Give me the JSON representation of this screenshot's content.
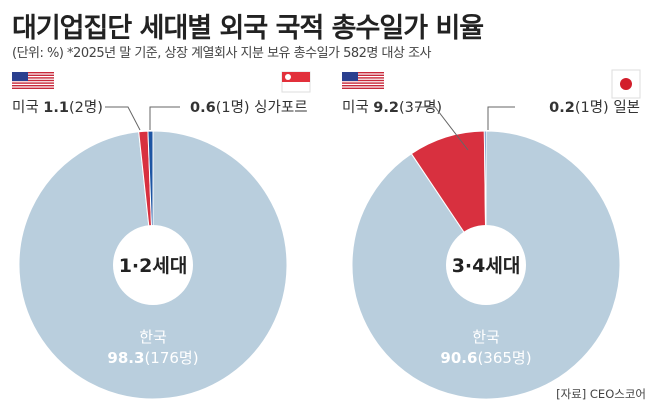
{
  "title": "대기업집단 세대별 외국 국적 총수일가 비율",
  "subtitle": "(단위: %) *2025년 말 기준, 상장 계열회사 지분 보유 총수일가 582명 대상 조사",
  "source": "[자료] CEO스코어",
  "colors": {
    "korea": "#b9cedd",
    "usa": "#d8303f",
    "other": "#1d55a3",
    "center": "#ffffff"
  },
  "chart_data": [
    {
      "type": "pie",
      "center_label": "1·2세대",
      "slices": [
        {
          "name": "한국",
          "value": 98.3,
          "count_label": "(176명)",
          "value_label": "98.3"
        },
        {
          "name": "미국",
          "value": 1.1,
          "count_label": "(2명)",
          "value_label": "1.1",
          "flag": "usa-flag"
        },
        {
          "name": "싱가포르",
          "value": 0.6,
          "count_label": "(1명)",
          "value_label": "0.6",
          "flag": "singapore-flag"
        }
      ]
    },
    {
      "type": "pie",
      "center_label": "3·4세대",
      "slices": [
        {
          "name": "한국",
          "value": 90.6,
          "count_label": "(365명)",
          "value_label": "90.6"
        },
        {
          "name": "미국",
          "value": 9.2,
          "count_label": "(37명)",
          "value_label": "9.2",
          "flag": "usa-flag"
        },
        {
          "name": "일본",
          "value": 0.2,
          "count_label": "(1명)",
          "value_label": "0.2",
          "flag": "japan-flag"
        }
      ]
    }
  ]
}
